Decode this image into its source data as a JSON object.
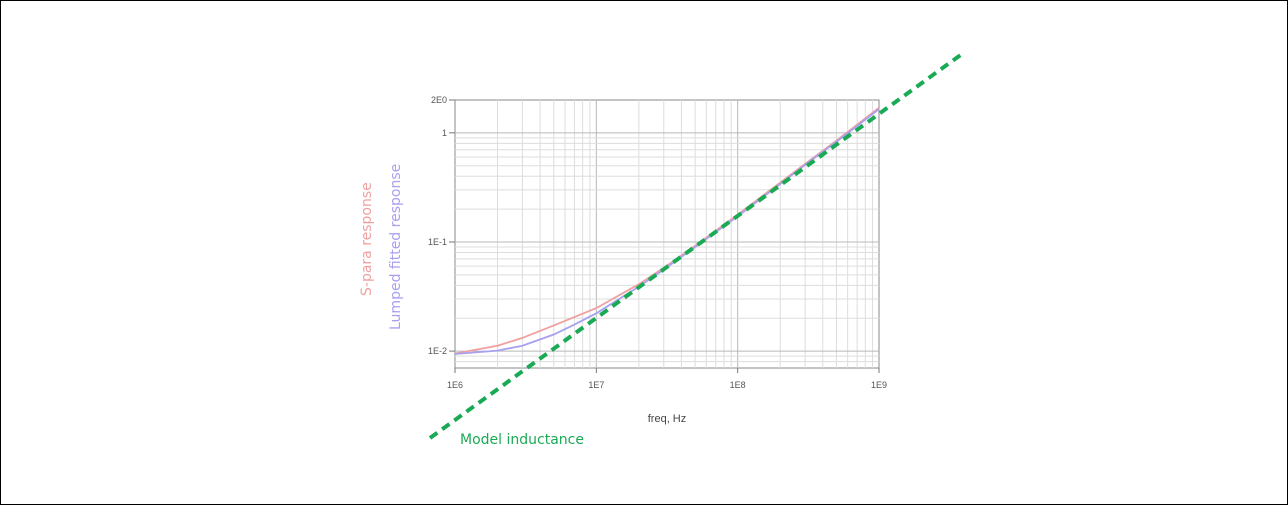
{
  "chart_data": {
    "type": "line",
    "x_scale": "log",
    "y_scale": "log",
    "xlabel": "freq, Hz",
    "ylabel": "",
    "xlim": [
      1000000,
      1000000000
    ],
    "ylim": [
      0.007,
      2
    ],
    "grid": true,
    "x_ticks": [
      {
        "value": 1000000,
        "label": "1E6"
      },
      {
        "value": 10000000,
        "label": "1E7"
      },
      {
        "value": 100000000,
        "label": "1E8"
      },
      {
        "value": 1000000000,
        "label": "1E9"
      }
    ],
    "y_ticks": [
      {
        "value": 0.01,
        "label": "1E-2"
      },
      {
        "value": 0.1,
        "label": "1E-1"
      },
      {
        "value": 1,
        "label": "1"
      },
      {
        "value": 2,
        "label": "2E0"
      }
    ],
    "series": [
      {
        "name": "S-para response",
        "color": "#f0a0a0",
        "x": [
          1000000,
          2000000,
          3000000,
          5000000,
          7000000,
          10000000,
          20000000,
          30000000,
          50000000,
          100000000,
          200000000,
          300000000,
          500000000,
          1000000000
        ],
        "y": [
          0.0095,
          0.0112,
          0.0132,
          0.0172,
          0.0205,
          0.0248,
          0.041,
          0.058,
          0.092,
          0.178,
          0.35,
          0.52,
          0.85,
          1.7
        ]
      },
      {
        "name": "Lumped fitted response",
        "color": "#a8a0f0",
        "x": [
          1000000,
          2000000,
          3000000,
          5000000,
          7000000,
          10000000,
          20000000,
          30000000,
          50000000,
          100000000,
          200000000,
          300000000,
          500000000,
          1000000000
        ],
        "y": [
          0.0094,
          0.0101,
          0.0112,
          0.0142,
          0.0175,
          0.0222,
          0.039,
          0.056,
          0.09,
          0.172,
          0.34,
          0.51,
          0.83,
          1.65
        ]
      }
    ],
    "overlay_line": {
      "name": "Model inductance",
      "color": "#1aaa55",
      "style": "dashed"
    }
  }
}
